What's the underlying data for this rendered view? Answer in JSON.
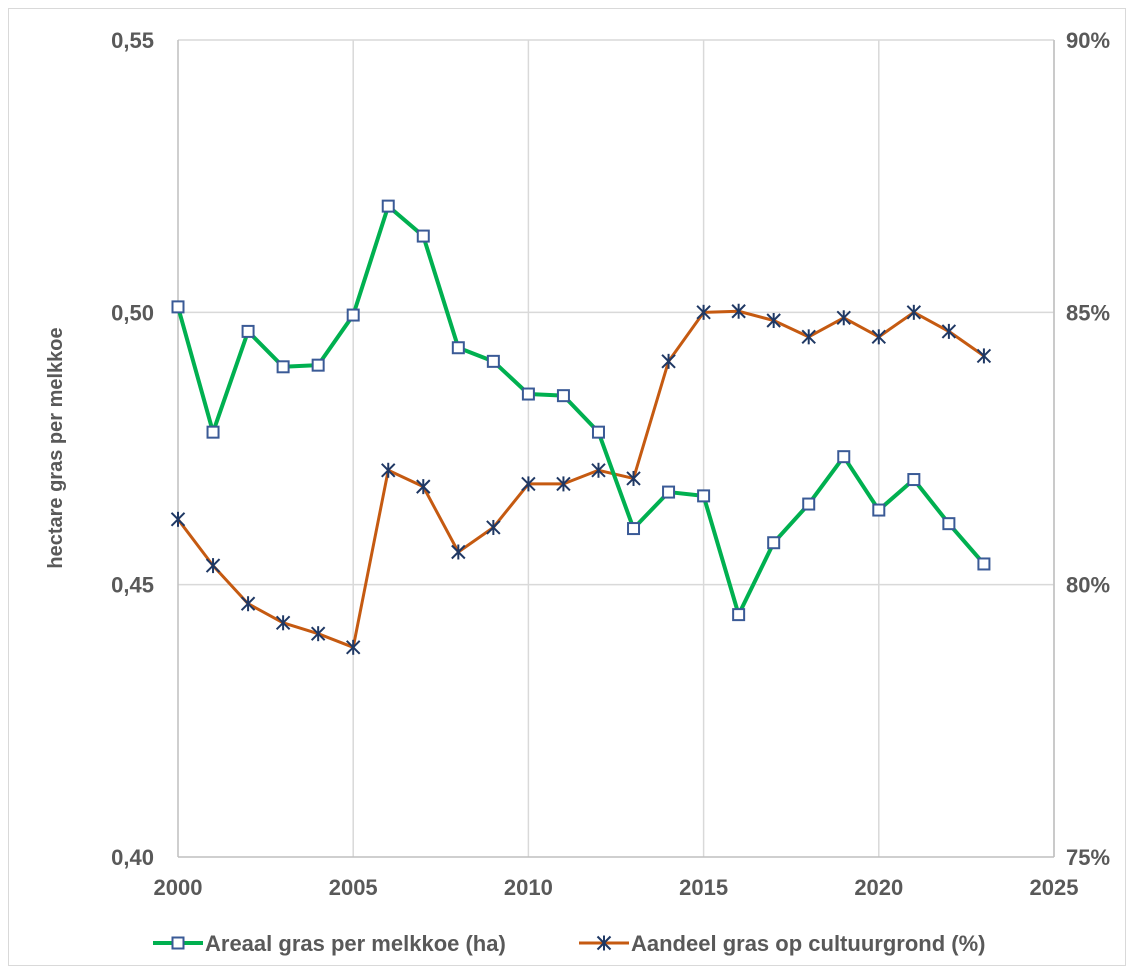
{
  "chart_data": {
    "type": "line",
    "title": "",
    "ylabel": "hectare gras per melkkoe",
    "y2label": "",
    "xlim": [
      2000,
      2025
    ],
    "ylim": [
      0.4,
      0.55
    ],
    "y2lim": [
      75,
      90
    ],
    "x_ticks": [
      "2000",
      "2005",
      "2010",
      "2015",
      "2020",
      "2025"
    ],
    "y_ticks": [
      "0,40",
      "0,45",
      "0,50",
      "0,55"
    ],
    "y2_ticks": [
      "75%",
      "80%",
      "85%",
      "90%"
    ],
    "grid": true,
    "legend_position": "bottom",
    "x": [
      2000,
      2001,
      2002,
      2003,
      2004,
      2005,
      2006,
      2007,
      2008,
      2009,
      2010,
      2011,
      2012,
      2013,
      2014,
      2015,
      2016,
      2017,
      2018,
      2019,
      2020,
      2021,
      2022,
      2023
    ],
    "series": [
      {
        "name": "Areaal gras per melkkoe (ha)",
        "axis": "left",
        "color": "#00b050",
        "marker": "square",
        "values": [
          0.501,
          0.478,
          0.4965,
          0.49,
          0.4903,
          0.4995,
          0.5195,
          0.514,
          0.4935,
          0.491,
          0.485,
          0.4847,
          0.478,
          0.4603,
          0.467,
          0.4663,
          0.4445,
          0.4577,
          0.4648,
          0.4735,
          0.4637,
          0.4693,
          0.4612,
          0.4538
        ]
      },
      {
        "name": "Aandeel gras op cultuurgrond (%)",
        "axis": "right",
        "color": "#c55a11",
        "marker": "star",
        "values": [
          81.2,
          80.35,
          79.65,
          79.3,
          79.1,
          78.85,
          82.1,
          81.8,
          80.6,
          81.05,
          81.85,
          81.85,
          82.1,
          81.95,
          84.1,
          85.0,
          85.02,
          84.85,
          84.55,
          84.9,
          84.55,
          85.0,
          84.65,
          84.2
        ]
      }
    ]
  }
}
